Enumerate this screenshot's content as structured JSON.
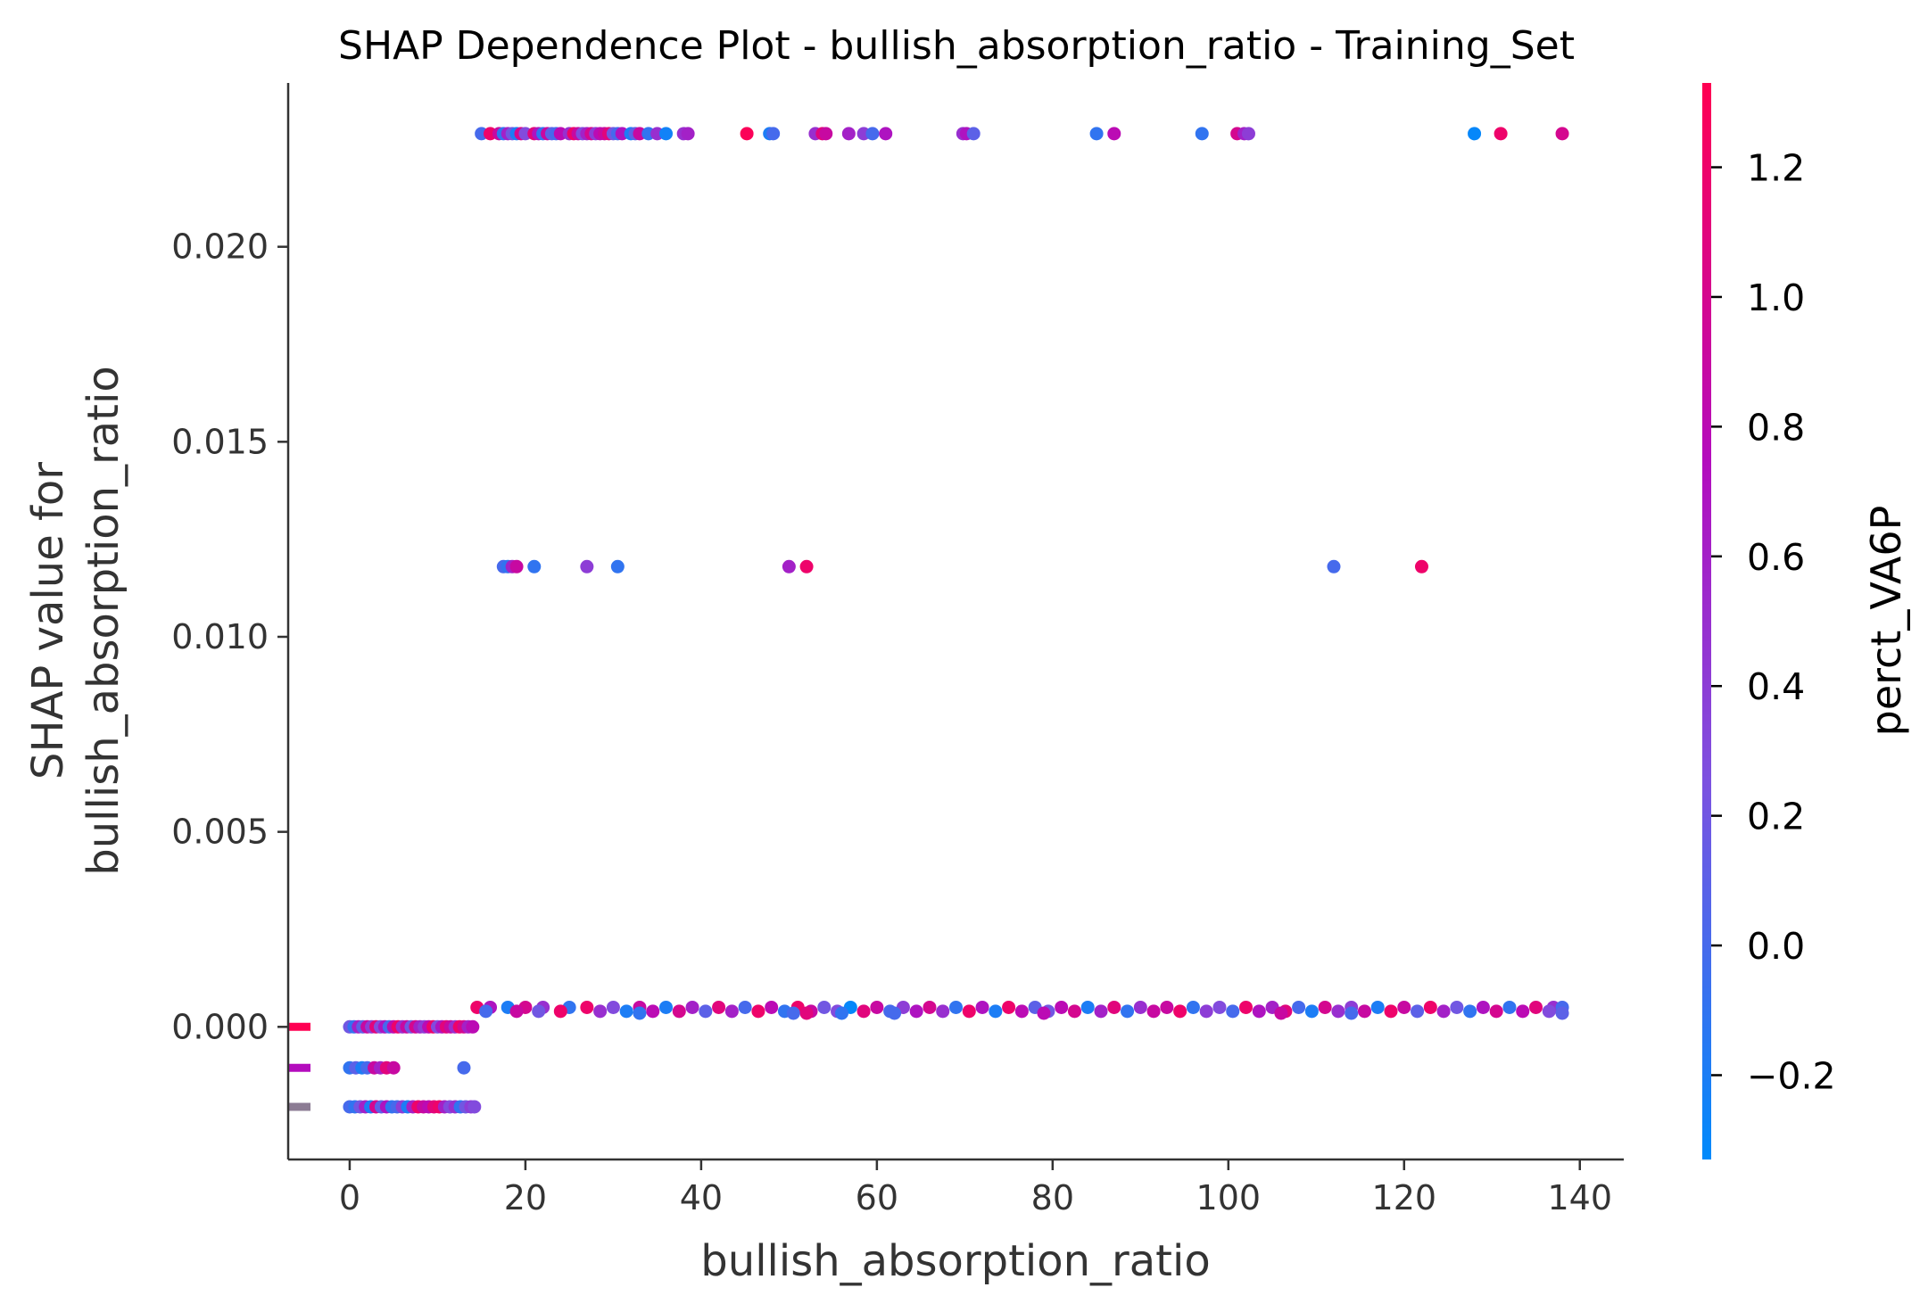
{
  "chart_data": {
    "type": "scatter",
    "title": "SHAP Dependence Plot - bullish_absorption_ratio - Training_Set",
    "xlabel": "bullish_absorption_ratio",
    "ylabel_lines": [
      "SHAP value for",
      "bullish_absorption_ratio"
    ],
    "xlim": [
      -7,
      145
    ],
    "ylim": [
      -0.0034,
      0.0242
    ],
    "x_ticks": [
      0,
      20,
      40,
      60,
      80,
      100,
      120,
      140
    ],
    "x_tick_labels": [
      "0",
      "20",
      "40",
      "60",
      "80",
      "100",
      "120",
      "140"
    ],
    "y_ticks": [
      0.0,
      0.005,
      0.01,
      0.015,
      0.02
    ],
    "y_tick_labels": [
      "0.000",
      "0.005",
      "0.010",
      "0.015",
      "0.020"
    ],
    "grid": false,
    "colorbar": {
      "label": "perct_VA6P",
      "range": [
        -0.33,
        1.33
      ],
      "ticks": [
        -0.2,
        0.0,
        0.2,
        0.4,
        0.6,
        0.8,
        1.0,
        1.2
      ],
      "tick_labels": [
        "−0.2",
        "0.0",
        "0.2",
        "0.4",
        "0.6",
        "0.8",
        "1.0",
        "1.2"
      ],
      "colormap_stops": [
        "#008afb",
        "#7c52e0",
        "#b40cbd",
        "#ff0052"
      ]
    },
    "left_markers": [
      {
        "y": 0.0,
        "color": "#ff0052"
      },
      {
        "y": -0.00105,
        "color": "#b40cbd"
      },
      {
        "y": -0.00205,
        "color": "#8c7c94"
      }
    ],
    "series": [
      {
        "points": [
          [
            15,
            0.0229,
            0.0
          ],
          [
            16,
            0.0229,
            1.2
          ],
          [
            17,
            0.0229,
            0.9
          ],
          [
            17.5,
            0.0229,
            -0.1
          ],
          [
            18,
            0.0229,
            0.6
          ],
          [
            18.5,
            0.0229,
            0.2
          ],
          [
            19,
            0.0229,
            -0.2
          ],
          [
            19.5,
            0.0229,
            1.0
          ],
          [
            20,
            0.0229,
            0.3
          ],
          [
            21,
            0.0229,
            1.1
          ],
          [
            21.5,
            0.0229,
            0.7
          ],
          [
            22,
            0.0229,
            -0.1
          ],
          [
            22.5,
            0.0229,
            0.9
          ],
          [
            23,
            0.0229,
            0.1
          ],
          [
            23.5,
            0.0229,
            0.0
          ],
          [
            24,
            0.0229,
            0.8
          ],
          [
            25,
            0.0229,
            0.5
          ],
          [
            25.5,
            0.0229,
            1.2
          ],
          [
            26,
            0.0229,
            0.9
          ],
          [
            26.5,
            0.0229,
            0.3
          ],
          [
            27,
            0.0229,
            0.6
          ],
          [
            27.5,
            0.0229,
            1.0
          ],
          [
            28,
            0.0229,
            0.4
          ],
          [
            28.5,
            0.0229,
            0.8
          ],
          [
            29,
            0.0229,
            0.9
          ],
          [
            29.5,
            0.0229,
            1.1
          ],
          [
            30,
            0.0229,
            0.2
          ],
          [
            30.5,
            0.0229,
            0.0
          ],
          [
            31,
            0.0229,
            0.7
          ],
          [
            32,
            0.0229,
            -0.2
          ],
          [
            32.5,
            0.0229,
            0.1
          ],
          [
            33,
            0.0229,
            0.9
          ],
          [
            34,
            0.0229,
            -0.1
          ],
          [
            35,
            0.0229,
            0.5
          ],
          [
            36,
            0.0229,
            -0.25
          ],
          [
            38,
            0.0229,
            0.5
          ],
          [
            38.5,
            0.0229,
            0.6
          ],
          [
            45.2,
            0.0229,
            1.3
          ],
          [
            47.8,
            0.0229,
            -0.2
          ],
          [
            48.2,
            0.0229,
            0.0
          ],
          [
            53,
            0.0229,
            0.5
          ],
          [
            53.8,
            0.0229,
            1.1
          ],
          [
            54.2,
            0.0229,
            0.9
          ],
          [
            56.8,
            0.0229,
            0.6
          ],
          [
            58.5,
            0.0229,
            0.4
          ],
          [
            59.5,
            0.0229,
            0.0
          ],
          [
            61,
            0.0229,
            0.7
          ],
          [
            69.8,
            0.0229,
            0.5
          ],
          [
            70.2,
            0.0229,
            0.7
          ],
          [
            71,
            0.0229,
            0.1
          ],
          [
            85,
            0.0229,
            -0.1
          ],
          [
            87,
            0.0229,
            0.8
          ],
          [
            97,
            0.0229,
            -0.1
          ],
          [
            101,
            0.0229,
            1.0
          ],
          [
            101.8,
            0.0229,
            0.6
          ],
          [
            102.3,
            0.0229,
            0.4
          ],
          [
            128,
            0.0229,
            -0.3
          ],
          [
            131,
            0.0229,
            1.2
          ],
          [
            138,
            0.0229,
            1.0
          ],
          [
            17.5,
            0.0118,
            0.0
          ],
          [
            18,
            0.0118,
            -0.1
          ],
          [
            18.5,
            0.0118,
            0.6
          ],
          [
            19,
            0.0118,
            0.9
          ],
          [
            21,
            0.0118,
            -0.1
          ],
          [
            27,
            0.0118,
            0.4
          ],
          [
            30.5,
            0.0118,
            -0.1
          ],
          [
            50,
            0.0118,
            0.6
          ],
          [
            52,
            0.0118,
            1.2
          ],
          [
            112,
            0.0118,
            0.0
          ],
          [
            122,
            0.0118,
            1.2
          ],
          [
            14.5,
            0.0005,
            1.2
          ],
          [
            16,
            0.0005,
            0.7
          ],
          [
            18,
            0.0005,
            -0.2
          ],
          [
            20,
            0.0005,
            1.0
          ],
          [
            22,
            0.0005,
            0.5
          ],
          [
            25,
            0.0005,
            -0.1
          ],
          [
            27,
            0.0005,
            1.2
          ],
          [
            30,
            0.0005,
            0.3
          ],
          [
            33,
            0.0005,
            0.9
          ],
          [
            36,
            0.0005,
            -0.2
          ],
          [
            39,
            0.0005,
            0.6
          ],
          [
            42,
            0.0005,
            1.1
          ],
          [
            45,
            0.0005,
            0.0
          ],
          [
            48,
            0.0005,
            0.8
          ],
          [
            51,
            0.0005,
            1.2
          ],
          [
            54,
            0.0005,
            0.2
          ],
          [
            57,
            0.0005,
            -0.3
          ],
          [
            60,
            0.0005,
            0.9
          ],
          [
            63,
            0.0005,
            0.4
          ],
          [
            66,
            0.0005,
            1.0
          ],
          [
            69,
            0.0005,
            -0.1
          ],
          [
            72,
            0.0005,
            0.7
          ],
          [
            75,
            0.0005,
            1.2
          ],
          [
            78,
            0.0005,
            0.1
          ],
          [
            81,
            0.0005,
            0.8
          ],
          [
            84,
            0.0005,
            -0.2
          ],
          [
            87,
            0.0005,
            1.1
          ],
          [
            90,
            0.0005,
            0.5
          ],
          [
            93,
            0.0005,
            0.9
          ],
          [
            96,
            0.0005,
            -0.1
          ],
          [
            99,
            0.0005,
            0.3
          ],
          [
            102,
            0.0005,
            1.2
          ],
          [
            105,
            0.0005,
            0.6
          ],
          [
            108,
            0.0005,
            0.0
          ],
          [
            111,
            0.0005,
            1.0
          ],
          [
            114,
            0.0005,
            0.4
          ],
          [
            117,
            0.0005,
            -0.2
          ],
          [
            120,
            0.0005,
            0.9
          ],
          [
            123,
            0.0005,
            1.2
          ],
          [
            126,
            0.0005,
            0.2
          ],
          [
            129,
            0.0005,
            0.7
          ],
          [
            132,
            0.0005,
            -0.1
          ],
          [
            135,
            0.0005,
            1.1
          ],
          [
            137,
            0.0005,
            0.5
          ],
          [
            138,
            0.0005,
            0.0
          ],
          [
            15.5,
            0.0004,
            0.0
          ],
          [
            19,
            0.0004,
            0.9
          ],
          [
            21.5,
            0.0004,
            0.2
          ],
          [
            24,
            0.0004,
            1.2
          ],
          [
            28.5,
            0.0004,
            0.5
          ],
          [
            31.5,
            0.0004,
            -0.2
          ],
          [
            34.5,
            0.0004,
            0.8
          ],
          [
            37.5,
            0.0004,
            1.0
          ],
          [
            40.5,
            0.0004,
            0.1
          ],
          [
            43.5,
            0.0004,
            0.6
          ],
          [
            46.5,
            0.0004,
            1.2
          ],
          [
            49.5,
            0.0004,
            -0.1
          ],
          [
            52.5,
            0.0004,
            0.9
          ],
          [
            55.5,
            0.0004,
            0.3
          ],
          [
            58.5,
            0.0004,
            1.1
          ],
          [
            61.5,
            0.0004,
            0.0
          ],
          [
            64.5,
            0.0004,
            0.7
          ],
          [
            67.5,
            0.0004,
            0.5
          ],
          [
            70.5,
            0.0004,
            1.2
          ],
          [
            73.5,
            0.0004,
            -0.2
          ],
          [
            76.5,
            0.0004,
            0.8
          ],
          [
            79.5,
            0.0004,
            0.2
          ],
          [
            82.5,
            0.0004,
            1.0
          ],
          [
            85.5,
            0.0004,
            0.6
          ],
          [
            88.5,
            0.0004,
            -0.1
          ],
          [
            91.5,
            0.0004,
            0.9
          ],
          [
            94.5,
            0.0004,
            1.2
          ],
          [
            97.5,
            0.0004,
            0.4
          ],
          [
            100.5,
            0.0004,
            0.0
          ],
          [
            103.5,
            0.0004,
            0.7
          ],
          [
            106.5,
            0.0004,
            1.1
          ],
          [
            109.5,
            0.0004,
            -0.2
          ],
          [
            112.5,
            0.0004,
            0.5
          ],
          [
            115.5,
            0.0004,
            0.9
          ],
          [
            118.5,
            0.0004,
            1.2
          ],
          [
            121.5,
            0.0004,
            0.1
          ],
          [
            124.5,
            0.0004,
            0.6
          ],
          [
            127.5,
            0.0004,
            -0.1
          ],
          [
            130.5,
            0.0004,
            1.0
          ],
          [
            133.5,
            0.0004,
            0.8
          ],
          [
            136.5,
            0.0004,
            0.3
          ],
          [
            33,
            0.00035,
            -0.1
          ],
          [
            50.5,
            0.00035,
            0.0
          ],
          [
            52,
            0.00035,
            1.1
          ],
          [
            56,
            0.00035,
            -0.1
          ],
          [
            62,
            0.00035,
            0.0
          ],
          [
            79,
            0.00035,
            0.8
          ],
          [
            106,
            0.00035,
            0.9
          ],
          [
            114,
            0.00035,
            0.0
          ],
          [
            138,
            0.00035,
            0.1
          ],
          [
            0,
            0.0,
            0.2
          ],
          [
            0.5,
            0.0,
            -0.1
          ],
          [
            1,
            0.0,
            0.6
          ],
          [
            1.5,
            0.0,
            0.1
          ],
          [
            2,
            0.0,
            0.9
          ],
          [
            2.5,
            0.0,
            0.4
          ],
          [
            3,
            0.0,
            1.1
          ],
          [
            3.5,
            0.0,
            0.3
          ],
          [
            4,
            0.0,
            0.7
          ],
          [
            4.5,
            0.0,
            0.0
          ],
          [
            5,
            0.0,
            0.8
          ],
          [
            5.5,
            0.0,
            1.2
          ],
          [
            6,
            0.0,
            0.5
          ],
          [
            6.5,
            0.0,
            0.9
          ],
          [
            7,
            0.0,
            0.2
          ],
          [
            7.5,
            0.0,
            1.0
          ],
          [
            8,
            0.0,
            0.6
          ],
          [
            8.5,
            0.0,
            0.4
          ],
          [
            9,
            0.0,
            0.8
          ],
          [
            9.5,
            0.0,
            1.2
          ],
          [
            10,
            0.0,
            0.3
          ],
          [
            10.5,
            0.0,
            0.7
          ],
          [
            11,
            0.0,
            1.1
          ],
          [
            11.5,
            0.0,
            0.9
          ],
          [
            12,
            0.0,
            0.5
          ],
          [
            12.5,
            0.0,
            1.2
          ],
          [
            13,
            0.0,
            1.0
          ],
          [
            13.5,
            0.0,
            0.6
          ],
          [
            14,
            0.0,
            0.8
          ],
          [
            0,
            -0.00105,
            -0.1
          ],
          [
            0.7,
            -0.00105,
            0.1
          ],
          [
            1.4,
            -0.00105,
            -0.2
          ],
          [
            2,
            -0.00105,
            0.0
          ],
          [
            2.8,
            -0.00105,
            0.9
          ],
          [
            3.5,
            -0.00105,
            0.6
          ],
          [
            4.2,
            -0.00105,
            1.1
          ],
          [
            5,
            -0.00105,
            0.9
          ],
          [
            13,
            -0.00105,
            0.0
          ],
          [
            0,
            -0.00205,
            0.0
          ],
          [
            0.6,
            -0.00205,
            -0.1
          ],
          [
            1.2,
            -0.00205,
            0.2
          ],
          [
            1.8,
            -0.00205,
            0.6
          ],
          [
            2.4,
            -0.00205,
            -0.2
          ],
          [
            3,
            -0.00205,
            1.0
          ],
          [
            3.6,
            -0.00205,
            0.1
          ],
          [
            4.2,
            -0.00205,
            0.7
          ],
          [
            4.8,
            -0.00205,
            -0.1
          ],
          [
            5.4,
            -0.00205,
            0.0
          ],
          [
            6,
            -0.00205,
            0.4
          ],
          [
            6.6,
            -0.00205,
            -0.2
          ],
          [
            7.2,
            -0.00205,
            0.6
          ],
          [
            7.8,
            -0.00205,
            1.2
          ],
          [
            8.4,
            -0.00205,
            0.9
          ],
          [
            9,
            -0.00205,
            0.8
          ],
          [
            9.6,
            -0.00205,
            1.1
          ],
          [
            10.2,
            -0.00205,
            1.2
          ],
          [
            10.8,
            -0.00205,
            0.6
          ],
          [
            11.4,
            -0.00205,
            0.3
          ],
          [
            12,
            -0.00205,
            0.5
          ],
          [
            12.6,
            -0.00205,
            -0.1
          ],
          [
            13.2,
            -0.00205,
            0.2
          ],
          [
            13.8,
            -0.00205,
            0.4
          ],
          [
            14.2,
            -0.00205,
            0.3
          ]
        ]
      }
    ]
  }
}
